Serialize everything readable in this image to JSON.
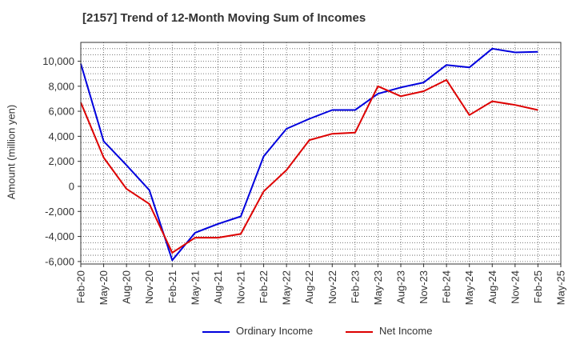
{
  "chart_data": {
    "type": "line",
    "title": "[2157]  Trend of 12-Month Moving Sum of Incomes",
    "xlabel": "",
    "ylabel": "Amount (million yen)",
    "ylim": [
      -6200,
      11500
    ],
    "yticks": [
      -6000,
      -4000,
      -2000,
      0,
      2000,
      4000,
      6000,
      8000,
      10000
    ],
    "ytick_labels": [
      "-6,000",
      "-4,000",
      "-2,000",
      "0",
      "2,000",
      "4,000",
      "6,000",
      "8,000",
      "10,000"
    ],
    "categories": [
      "Feb-20",
      "May-20",
      "Aug-20",
      "Nov-20",
      "Feb-21",
      "May-21",
      "Aug-21",
      "Nov-21",
      "Feb-22",
      "May-22",
      "Aug-22",
      "Nov-22",
      "Feb-23",
      "May-23",
      "Aug-23",
      "Nov-23",
      "Feb-24",
      "May-24",
      "Aug-24",
      "Nov-24",
      "Feb-25",
      "May-25"
    ],
    "grid": true,
    "legend_position": "bottom",
    "series": [
      {
        "name": "Ordinary Income",
        "color": "#0000dd",
        "values": [
          9800,
          3600,
          1700,
          -300,
          -5900,
          -3700,
          -3000,
          -2400,
          2400,
          4600,
          5400,
          6100,
          6100,
          7400,
          7900,
          8300,
          9700,
          9500,
          11000,
          10700,
          10750,
          null
        ]
      },
      {
        "name": "Net Income",
        "color": "#dd0000",
        "values": [
          6700,
          2300,
          -200,
          -1400,
          -5300,
          -4100,
          -4100,
          -3800,
          -400,
          1300,
          3700,
          4200,
          4300,
          8000,
          7200,
          7600,
          8500,
          5700,
          6800,
          6500,
          6100,
          null
        ]
      }
    ]
  }
}
